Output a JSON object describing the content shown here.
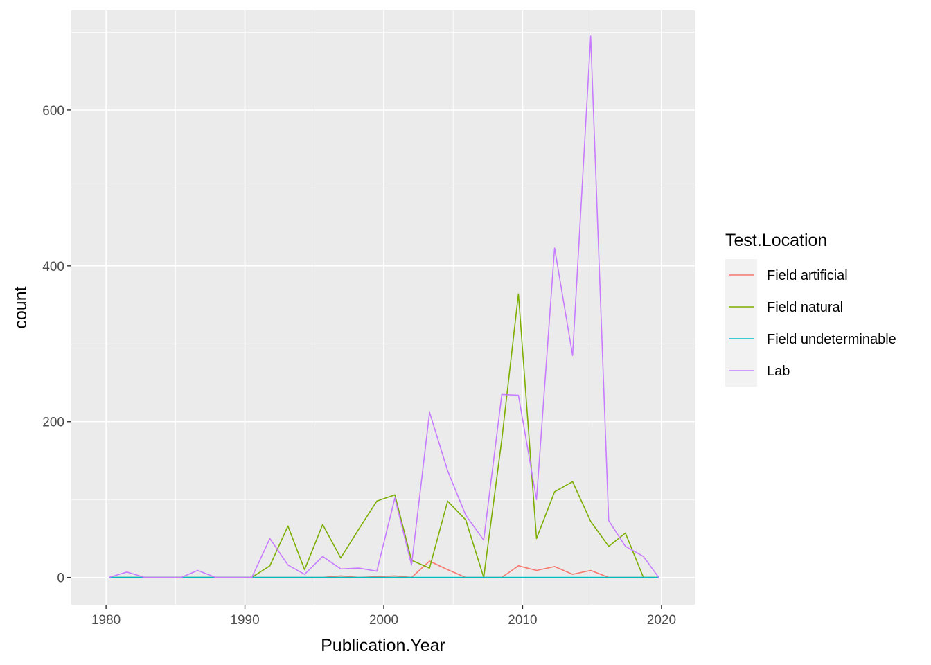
{
  "chart_data": {
    "type": "line",
    "title": "",
    "xlabel": "Publication.Year",
    "ylabel": "count",
    "xlim": [
      1977.5,
      2022.4
    ],
    "ylim": [
      -35,
      728
    ],
    "xticks": [
      1980,
      1990,
      2000,
      2010,
      2020
    ],
    "yticks": [
      0,
      200,
      400,
      600
    ],
    "x_tick_labels": [
      "1980",
      "1990",
      "2000",
      "2010",
      "2020"
    ],
    "y_tick_labels": [
      "0",
      "200",
      "400",
      "600"
    ],
    "grid": true,
    "legend": {
      "title": "Test.Location",
      "position": "right"
    },
    "x": [
      1980.2,
      1981.5,
      1982.8,
      1984.1,
      1985.4,
      1986.6,
      1987.9,
      1989.2,
      1990.5,
      1991.8,
      1993.1,
      1994.3,
      1995.6,
      1996.9,
      1998.2,
      1999.5,
      2000.8,
      2002.0,
      2003.3,
      2004.6,
      2005.9,
      2007.2,
      2008.5,
      2009.7,
      2011.0,
      2012.3,
      2013.6,
      2014.9,
      2016.2,
      2017.4,
      2018.7,
      2019.8
    ],
    "series": [
      {
        "name": "Field artificial",
        "color": "#F8766D",
        "values": [
          0,
          0,
          0,
          0,
          0,
          0,
          0,
          0,
          0,
          0,
          0,
          0,
          0,
          2,
          0,
          1,
          2,
          0,
          21,
          10,
          0,
          0,
          0,
          15,
          9,
          14,
          4,
          9,
          0,
          0,
          0,
          0
        ]
      },
      {
        "name": "Field natural",
        "color": "#7CAE00",
        "values": [
          0,
          0,
          0,
          0,
          0,
          0,
          0,
          0,
          0,
          15,
          66,
          10,
          68,
          25,
          62,
          98,
          106,
          22,
          12,
          98,
          74,
          0,
          177,
          364,
          50,
          110,
          123,
          72,
          40,
          57,
          0,
          0
        ]
      },
      {
        "name": "Field undeterminable",
        "color": "#00BFC4",
        "values": [
          0,
          0,
          0,
          0,
          0,
          0,
          0,
          0,
          0,
          0,
          0,
          0,
          0,
          0,
          0,
          0,
          0,
          0,
          0,
          0,
          0,
          0,
          0,
          0,
          0,
          0,
          0,
          0,
          0,
          0,
          0,
          0
        ]
      },
      {
        "name": "Lab",
        "color": "#C77CFF",
        "values": [
          0,
          7,
          0,
          0,
          0,
          9,
          0,
          0,
          0,
          50,
          16,
          4,
          27,
          11,
          12,
          8,
          102,
          16,
          212,
          137,
          80,
          48,
          235,
          234,
          100,
          423,
          285,
          695,
          73,
          40,
          27,
          0
        ]
      }
    ]
  }
}
